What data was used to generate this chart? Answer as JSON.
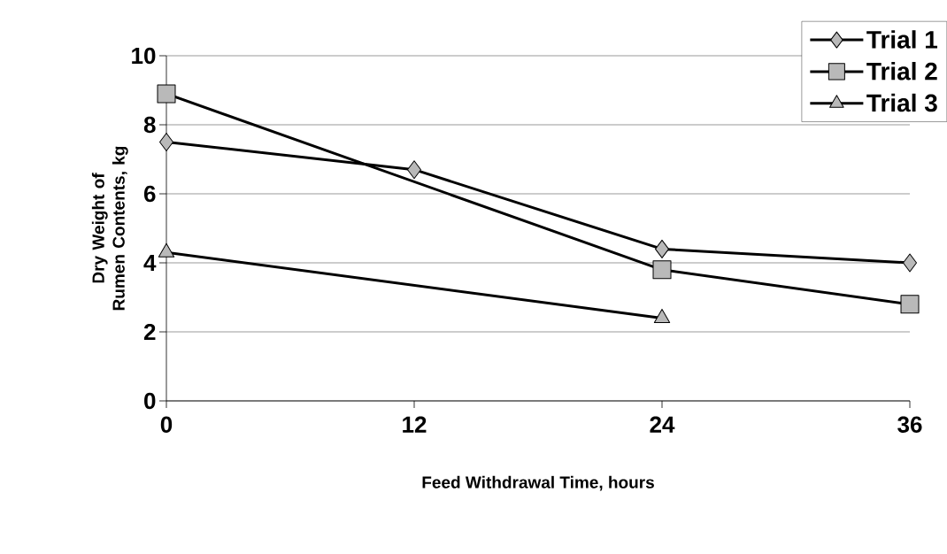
{
  "chart_data": {
    "type": "line",
    "xlabel": "Feed Withdrawal Time, hours",
    "ylabel": "Dry Weight of Rumen Contents, kg",
    "xlim": [
      0,
      36
    ],
    "ylim": [
      0,
      10
    ],
    "xticks": [
      0,
      12,
      24,
      36
    ],
    "yticks": [
      0,
      2,
      4,
      6,
      8,
      10
    ],
    "grid": "y",
    "legend": "top right",
    "line_style": "solid",
    "series": [
      {
        "name": "Trial 1",
        "color": "#000000",
        "marker": "diamond",
        "x": [
          0,
          12,
          24,
          36
        ],
        "values": [
          7.5,
          6.7,
          4.4,
          4.0
        ]
      },
      {
        "name": "Trial 2",
        "color": "#000000",
        "marker": "square",
        "x": [
          0,
          24,
          36
        ],
        "values": [
          8.9,
          3.8,
          2.8
        ]
      },
      {
        "name": "Trial 3",
        "color": "#000000",
        "marker": "triangle",
        "x": [
          0,
          24
        ],
        "values": [
          4.3,
          2.4
        ]
      }
    ]
  }
}
